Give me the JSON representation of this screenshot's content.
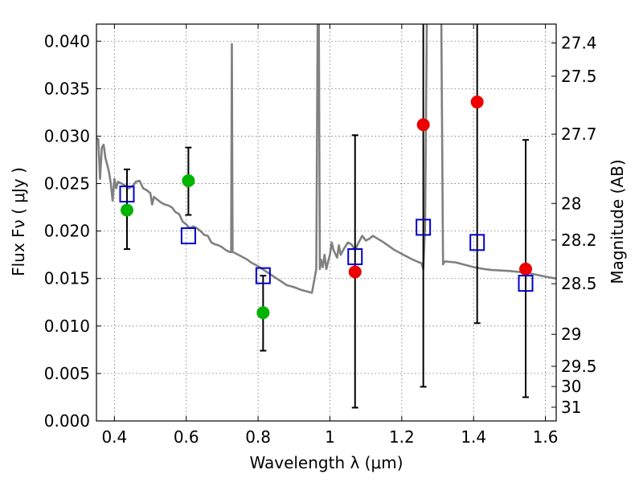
{
  "chart_data": {
    "type": "scatter",
    "title": "",
    "xlabel": "Wavelength  λ (μm)",
    "ylabel": "Flux  Fν  ( μJy )",
    "y2label": "Magnitude (AB)",
    "xlim": [
      0.35,
      1.63
    ],
    "ylim": [
      0.0,
      0.0418
    ],
    "grid": true,
    "x_ticks": [
      {
        "value": 0.4,
        "label": "0.4"
      },
      {
        "value": 0.6,
        "label": "0.6"
      },
      {
        "value": 0.8,
        "label": "0.8"
      },
      {
        "value": 1.0,
        "label": "1"
      },
      {
        "value": 1.2,
        "label": "1.2"
      },
      {
        "value": 1.4,
        "label": "1.4"
      },
      {
        "value": 1.6,
        "label": "1.6"
      }
    ],
    "y_ticks": [
      {
        "value": 0.0,
        "label": "0.000"
      },
      {
        "value": 0.005,
        "label": "0.005"
      },
      {
        "value": 0.01,
        "label": "0.010"
      },
      {
        "value": 0.015,
        "label": "0.015"
      },
      {
        "value": 0.02,
        "label": "0.020"
      },
      {
        "value": 0.025,
        "label": "0.025"
      },
      {
        "value": 0.03,
        "label": "0.030"
      },
      {
        "value": 0.035,
        "label": "0.035"
      },
      {
        "value": 0.04,
        "label": "0.040"
      }
    ],
    "y2_ticks": [
      {
        "value": 27.4,
        "label": "27.4"
      },
      {
        "value": 27.5,
        "label": "27.5"
      },
      {
        "value": 27.7,
        "label": "27.7"
      },
      {
        "value": 28.0,
        "label": "28"
      },
      {
        "value": 28.2,
        "label": "28.2"
      },
      {
        "value": 28.5,
        "label": "28.5"
      },
      {
        "value": 29.0,
        "label": "29"
      },
      {
        "value": 29.5,
        "label": "29.5"
      },
      {
        "value": 30.0,
        "label": "30"
      },
      {
        "value": 31.0,
        "label": "31"
      }
    ],
    "model_spectrum": {
      "color": "#808080",
      "points": [
        [
          0.35,
          0.0298
        ],
        [
          0.355,
          0.0297
        ],
        [
          0.36,
          0.0255
        ],
        [
          0.365,
          0.0288
        ],
        [
          0.37,
          0.0291
        ],
        [
          0.375,
          0.0277
        ],
        [
          0.38,
          0.027
        ],
        [
          0.385,
          0.0262
        ],
        [
          0.39,
          0.025
        ],
        [
          0.395,
          0.0232
        ],
        [
          0.4,
          0.0255
        ],
        [
          0.405,
          0.0245
        ],
        [
          0.41,
          0.0252
        ],
        [
          0.42,
          0.025
        ],
        [
          0.43,
          0.0248
        ],
        [
          0.44,
          0.0245
        ],
        [
          0.45,
          0.0247
        ],
        [
          0.46,
          0.0252
        ],
        [
          0.47,
          0.0253
        ],
        [
          0.48,
          0.0245
        ],
        [
          0.49,
          0.0243
        ],
        [
          0.5,
          0.024
        ],
        [
          0.505,
          0.0228
        ],
        [
          0.51,
          0.0236
        ],
        [
          0.52,
          0.0233
        ],
        [
          0.53,
          0.023
        ],
        [
          0.54,
          0.0228
        ],
        [
          0.55,
          0.0227
        ],
        [
          0.56,
          0.0225
        ],
        [
          0.57,
          0.022
        ],
        [
          0.58,
          0.0218
        ],
        [
          0.59,
          0.021
        ],
        [
          0.6,
          0.0207
        ],
        [
          0.61,
          0.0203
        ],
        [
          0.62,
          0.0205
        ],
        [
          0.63,
          0.0203
        ],
        [
          0.64,
          0.02
        ],
        [
          0.65,
          0.0196
        ],
        [
          0.66,
          0.0195
        ],
        [
          0.67,
          0.0188
        ],
        [
          0.68,
          0.0186
        ],
        [
          0.69,
          0.0185
        ],
        [
          0.7,
          0.0183
        ],
        [
          0.71,
          0.018
        ],
        [
          0.72,
          0.0178
        ],
        [
          0.725,
          0.0178
        ],
        [
          0.727,
          0.0397
        ],
        [
          0.729,
          0.0178
        ],
        [
          0.74,
          0.0176
        ],
        [
          0.75,
          0.0174
        ],
        [
          0.76,
          0.0172
        ],
        [
          0.77,
          0.017
        ],
        [
          0.78,
          0.0167
        ],
        [
          0.79,
          0.0165
        ],
        [
          0.8,
          0.0163
        ],
        [
          0.82,
          0.0158
        ],
        [
          0.84,
          0.0153
        ],
        [
          0.86,
          0.0148
        ],
        [
          0.88,
          0.0143
        ],
        [
          0.9,
          0.0141
        ],
        [
          0.92,
          0.0138
        ],
        [
          0.94,
          0.0136
        ],
        [
          0.95,
          0.0135
        ],
        [
          0.962,
          0.016
        ],
        [
          0.966,
          0.043
        ],
        [
          0.969,
          0.043
        ],
        [
          0.972,
          0.016
        ],
        [
          0.975,
          0.017
        ],
        [
          0.98,
          0.0162
        ],
        [
          0.985,
          0.0175
        ],
        [
          0.99,
          0.016
        ],
        [
          0.995,
          0.0168
        ],
        [
          1.0,
          0.0175
        ],
        [
          1.005,
          0.0188
        ],
        [
          1.01,
          0.018
        ],
        [
          1.02,
          0.0172
        ],
        [
          1.025,
          0.0185
        ],
        [
          1.03,
          0.0175
        ],
        [
          1.04,
          0.0182
        ],
        [
          1.05,
          0.0188
        ],
        [
          1.06,
          0.0186
        ],
        [
          1.07,
          0.018
        ],
        [
          1.08,
          0.0188
        ],
        [
          1.09,
          0.0195
        ],
        [
          1.1,
          0.019
        ],
        [
          1.11,
          0.0192
        ],
        [
          1.12,
          0.0195
        ],
        [
          1.15,
          0.0188
        ],
        [
          1.18,
          0.018
        ],
        [
          1.2,
          0.0176
        ],
        [
          1.23,
          0.017
        ],
        [
          1.255,
          0.0166
        ],
        [
          1.26,
          0.016
        ],
        [
          1.265,
          0.0205
        ],
        [
          1.27,
          0.043
        ],
        [
          1.28,
          0.043
        ],
        [
          1.29,
          0.043
        ],
        [
          1.3,
          0.043
        ],
        [
          1.31,
          0.043
        ],
        [
          1.315,
          0.0165
        ],
        [
          1.32,
          0.0168
        ],
        [
          1.35,
          0.0167
        ],
        [
          1.4,
          0.0162
        ],
        [
          1.43,
          0.016
        ],
        [
          1.45,
          0.0159
        ],
        [
          1.5,
          0.0158
        ],
        [
          1.55,
          0.0156
        ],
        [
          1.6,
          0.0152
        ],
        [
          1.63,
          0.015
        ]
      ]
    },
    "series": [
      {
        "marker": "circle",
        "color": "#00b400",
        "points": [
          {
            "x": 0.435,
            "y": 0.0222,
            "err_low": 0.0181,
            "err_high": 0.0265
          },
          {
            "x": 0.606,
            "y": 0.0253,
            "err_low": 0.0217,
            "err_high": 0.0288
          },
          {
            "x": 0.814,
            "y": 0.0114,
            "err_low": 0.0074,
            "err_high": 0.0153
          }
        ]
      },
      {
        "marker": "circle",
        "color": "#ee0000",
        "points": [
          {
            "x": 1.07,
            "y": 0.0157,
            "err_low": 0.0014,
            "err_high": 0.0301
          },
          {
            "x": 1.26,
            "y": 0.0312,
            "err_low": 0.0036,
            "err_high": 0.043
          },
          {
            "x": 1.41,
            "y": 0.0336,
            "err_low": 0.0103,
            "err_high": 0.043
          },
          {
            "x": 1.545,
            "y": 0.016,
            "err_low": 0.0025,
            "err_high": 0.0296
          }
        ]
      },
      {
        "marker": "open-square",
        "color": "#0000cc",
        "points": [
          {
            "x": 0.435,
            "y": 0.0239
          },
          {
            "x": 0.606,
            "y": 0.0195
          },
          {
            "x": 0.814,
            "y": 0.0153
          },
          {
            "x": 1.07,
            "y": 0.0173
          },
          {
            "x": 1.26,
            "y": 0.0204
          },
          {
            "x": 1.41,
            "y": 0.0188
          },
          {
            "x": 1.545,
            "y": 0.0145
          }
        ]
      }
    ]
  }
}
